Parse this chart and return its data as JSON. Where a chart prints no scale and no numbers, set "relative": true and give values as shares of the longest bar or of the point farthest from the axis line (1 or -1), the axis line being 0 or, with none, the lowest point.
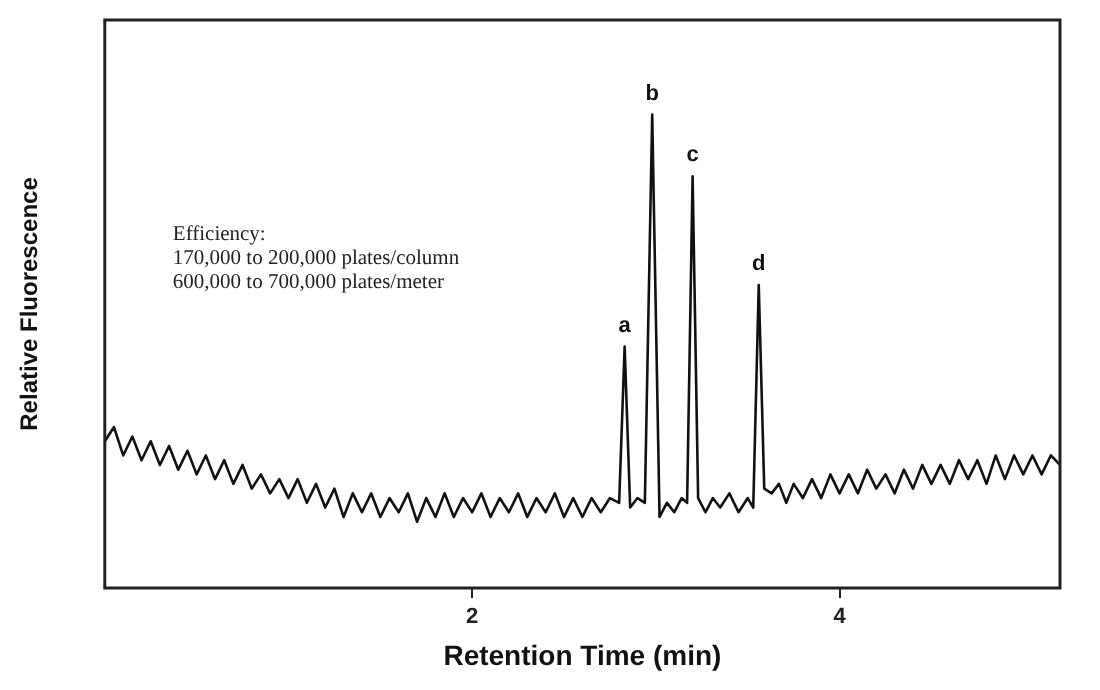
{
  "chart_data": {
    "type": "line",
    "xlabel": "Retention Time (min)",
    "ylabel": "Relative Fluorescence",
    "relative": true,
    "grid": false,
    "tick_labels": "x",
    "xlim": [
      0,
      5.2
    ],
    "xticks": [
      2,
      4
    ],
    "annotations": [
      {
        "text": "a",
        "x": 2.83,
        "y": 0.51
      },
      {
        "text": "b",
        "x": 2.98,
        "y": 1.0
      },
      {
        "text": "c",
        "x": 3.2,
        "y": 0.87
      },
      {
        "text": "d",
        "x": 3.56,
        "y": 0.64
      },
      "Efficiency:",
      "170,000 to 200,000 plates/column",
      "600,000 to 700,000 plates/meter"
    ],
    "series": [
      {
        "color": "#111111",
        "x": [
          0,
          0.05,
          0.1,
          0.15,
          0.2,
          0.25,
          0.3,
          0.35,
          0.4,
          0.45,
          0.5,
          0.55,
          0.6,
          0.65,
          0.7,
          0.75,
          0.8,
          0.85,
          0.9,
          0.95,
          1.0,
          1.05,
          1.1,
          1.15,
          1.2,
          1.25,
          1.3,
          1.35,
          1.4,
          1.45,
          1.5,
          1.55,
          1.6,
          1.65,
          1.7,
          1.75,
          1.8,
          1.85,
          1.9,
          1.95,
          2.0,
          2.05,
          2.1,
          2.15,
          2.2,
          2.25,
          2.3,
          2.35,
          2.4,
          2.45,
          2.5,
          2.55,
          2.6,
          2.65,
          2.7,
          2.75,
          2.8,
          2.83,
          2.86,
          2.9,
          2.94,
          2.98,
          3.02,
          3.06,
          3.1,
          3.14,
          3.17,
          3.2,
          3.23,
          3.27,
          3.31,
          3.35,
          3.4,
          3.45,
          3.5,
          3.53,
          3.56,
          3.59,
          3.63,
          3.67,
          3.71,
          3.75,
          3.8,
          3.85,
          3.9,
          3.95,
          4.0,
          4.05,
          4.1,
          4.15,
          4.2,
          4.25,
          4.3,
          4.35,
          4.4,
          4.45,
          4.5,
          4.55,
          4.6,
          4.65,
          4.7,
          4.75,
          4.8,
          4.85,
          4.9,
          4.95,
          5.0,
          5.05,
          5.1,
          5.15,
          5.2
        ],
        "values": [
          0.31,
          0.34,
          0.28,
          0.32,
          0.27,
          0.31,
          0.26,
          0.3,
          0.25,
          0.29,
          0.24,
          0.28,
          0.23,
          0.27,
          0.22,
          0.26,
          0.21,
          0.24,
          0.2,
          0.23,
          0.19,
          0.23,
          0.18,
          0.22,
          0.17,
          0.21,
          0.15,
          0.2,
          0.16,
          0.2,
          0.15,
          0.19,
          0.16,
          0.2,
          0.14,
          0.19,
          0.15,
          0.2,
          0.15,
          0.19,
          0.16,
          0.2,
          0.15,
          0.19,
          0.16,
          0.2,
          0.15,
          0.19,
          0.16,
          0.2,
          0.15,
          0.19,
          0.15,
          0.19,
          0.16,
          0.19,
          0.18,
          0.51,
          0.17,
          0.19,
          0.18,
          1.0,
          0.15,
          0.18,
          0.16,
          0.19,
          0.18,
          0.87,
          0.19,
          0.16,
          0.19,
          0.17,
          0.2,
          0.16,
          0.19,
          0.17,
          0.64,
          0.21,
          0.2,
          0.22,
          0.18,
          0.22,
          0.19,
          0.23,
          0.19,
          0.24,
          0.2,
          0.24,
          0.2,
          0.25,
          0.21,
          0.24,
          0.2,
          0.25,
          0.21,
          0.26,
          0.22,
          0.26,
          0.22,
          0.27,
          0.23,
          0.27,
          0.22,
          0.28,
          0.23,
          0.28,
          0.24,
          0.28,
          0.24,
          0.28,
          0.26
        ]
      }
    ]
  }
}
